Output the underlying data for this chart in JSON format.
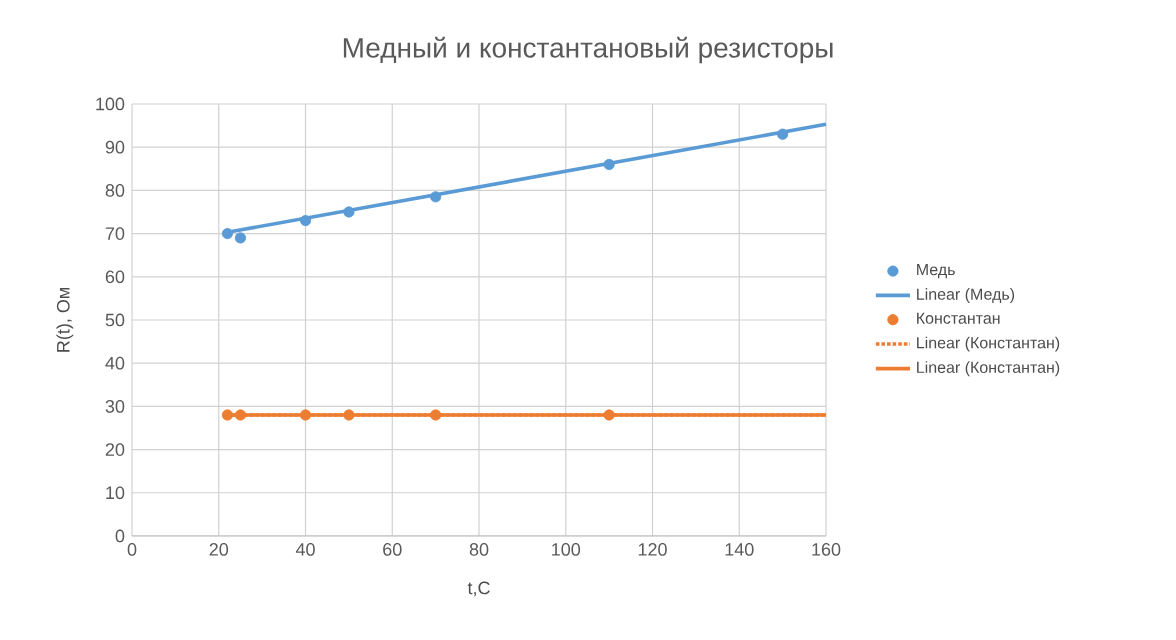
{
  "chart_data": {
    "type": "scatter",
    "title": "Медный и константановый резисторы",
    "xlabel": "t,C",
    "ylabel": "R(t), Ом",
    "xlim": [
      0,
      160
    ],
    "ylim": [
      0,
      100
    ],
    "xticks": [
      0,
      20,
      40,
      60,
      80,
      100,
      120,
      140,
      160
    ],
    "yticks": [
      0,
      10,
      20,
      30,
      40,
      50,
      60,
      70,
      80,
      90,
      100
    ],
    "grid": true,
    "legend": "right",
    "series": [
      {
        "name": "Медь",
        "type": "scatter",
        "marker": "circle",
        "color": "#5b9bd5",
        "x": [
          22,
          25,
          40,
          50,
          70,
          110,
          150
        ],
        "values": [
          70,
          69,
          73,
          75,
          78.5,
          86,
          93
        ]
      },
      {
        "name": "Linear (Медь)",
        "type": "line",
        "marker": "none",
        "color": "#5b9bd5",
        "line_style": "solid",
        "x": [
          22,
          160
        ],
        "values": [
          70.3,
          95.3
        ]
      },
      {
        "name": "Константан",
        "type": "scatter",
        "marker": "circle",
        "color": "#ed7d31",
        "x": [
          22,
          25,
          40,
          50,
          70,
          110
        ],
        "values": [
          28,
          28,
          28,
          28,
          28,
          28
        ]
      },
      {
        "name": "Linear (Константан)",
        "type": "line",
        "marker": "none",
        "color": "#ed7d31",
        "line_style": "dotted",
        "x": [
          22,
          160
        ],
        "values": [
          28,
          28
        ]
      },
      {
        "name": "Linear (Константан)",
        "type": "line",
        "marker": "none",
        "color": "#ed7d31",
        "line_style": "solid",
        "x": [
          22,
          160
        ],
        "values": [
          28,
          28
        ]
      }
    ]
  }
}
